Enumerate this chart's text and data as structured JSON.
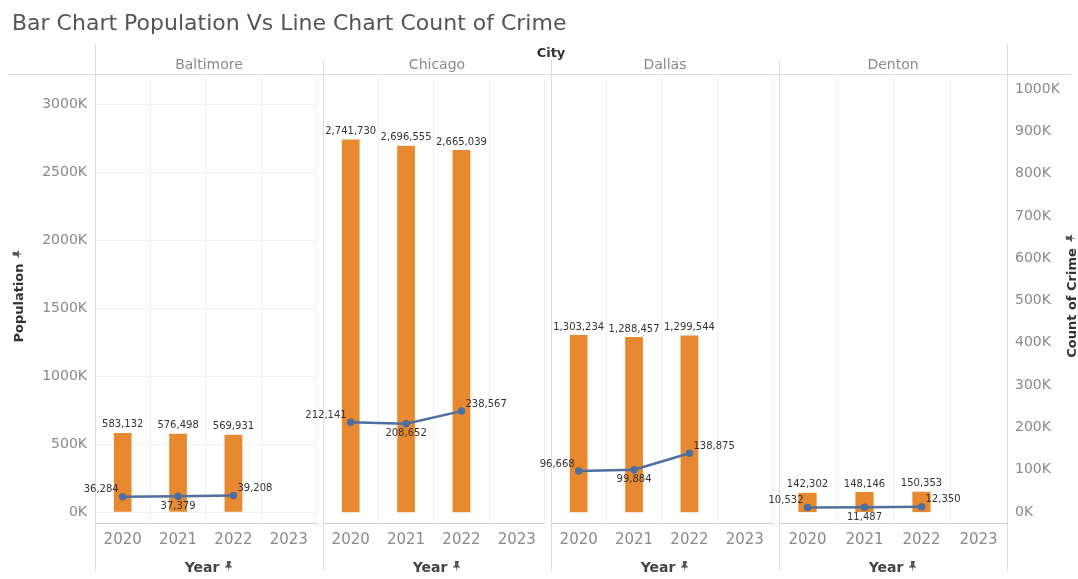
{
  "chart_data": [
    {
      "type": "bar",
      "title": "Baltimore",
      "annotations": [
        "Bar Chart Population Vs  Line Chart Count of Crime",
        "City"
      ],
      "xlabel": "Year",
      "ylabel": "Population",
      "categories": [
        "2020",
        "2021",
        "2022",
        "2023"
      ],
      "series": [
        {
          "color": "#e8892f",
          "values": [
            583132,
            576498,
            569931,
            null
          ],
          "value_labels": [
            "583,132",
            "576,498",
            "569,931",
            null
          ]
        },
        {
          "type": "line",
          "axis": "y2",
          "color": "#4e6fa0",
          "values": [
            36284,
            37379,
            39208,
            null
          ],
          "value_labels": [
            "36,284",
            "37,379",
            "39,208",
            null
          ]
        }
      ],
      "ylim": [
        -80000,
        3210000
      ],
      "yticks": [
        {
          "value": 0,
          "label": "0K"
        },
        {
          "value": 500000,
          "label": "500K"
        },
        {
          "value": 1000000,
          "label": "1000K"
        },
        {
          "value": 1500000,
          "label": "1500K"
        },
        {
          "value": 2000000,
          "label": "2000K"
        },
        {
          "value": 2500000,
          "label": "2500K"
        },
        {
          "value": 3000000,
          "label": "3000K"
        }
      ],
      "y2lim": [
        -26000,
        1031000
      ],
      "marker": "circle",
      "line_style": "solid",
      "grid": true,
      "legend": false,
      "tick_labels": "xy"
    },
    {
      "type": "bar",
      "title": "Chicago",
      "xlabel": "Year",
      "categories": [
        "2020",
        "2021",
        "2022",
        "2023"
      ],
      "series": [
        {
          "color": "#e8892f",
          "values": [
            2741730,
            2696555,
            2665039,
            null
          ],
          "value_labels": [
            "2,741,730",
            "2,696,555",
            "2,665,039",
            null
          ]
        },
        {
          "type": "line",
          "axis": "y2",
          "color": "#4e6fa0",
          "values": [
            212141,
            208652,
            238567,
            null
          ],
          "value_labels": [
            "212,141",
            "208,652",
            "238,567",
            null
          ]
        }
      ],
      "ylim": [
        -80000,
        3210000
      ],
      "y2lim": [
        -26000,
        1031000
      ],
      "marker": "circle",
      "line_style": "solid",
      "grid": true,
      "tick_labels": "x"
    },
    {
      "type": "bar",
      "title": "Dallas",
      "xlabel": "Year",
      "categories": [
        "2020",
        "2021",
        "2022",
        "2023"
      ],
      "series": [
        {
          "color": "#e8892f",
          "values": [
            1303234,
            1288457,
            1299544,
            null
          ],
          "value_labels": [
            "1,303,234",
            "1,288,457",
            "1,299,544",
            null
          ]
        },
        {
          "type": "line",
          "axis": "y2",
          "color": "#4e6fa0",
          "values": [
            96668,
            99884,
            138875,
            null
          ],
          "value_labels": [
            "96,668",
            "99,884",
            "138,875",
            null
          ]
        }
      ],
      "ylim": [
        -80000,
        3210000
      ],
      "y2lim": [
        -26000,
        1031000
      ],
      "marker": "circle",
      "line_style": "solid",
      "grid": true,
      "tick_labels": "x"
    },
    {
      "type": "bar",
      "title": "Denton",
      "xlabel": "Year",
      "y2label": "Count of Crime",
      "categories": [
        "2020",
        "2021",
        "2022",
        "2023"
      ],
      "series": [
        {
          "color": "#e8892f",
          "values": [
            142302,
            148146,
            150353,
            null
          ],
          "value_labels": [
            "142,302",
            "148,146",
            "150,353",
            null
          ]
        },
        {
          "type": "line",
          "axis": "y2",
          "color": "#4e6fa0",
          "values": [
            10532,
            11487,
            12350,
            null
          ],
          "value_labels": [
            "10,532",
            "11,487",
            "12,350",
            null
          ]
        }
      ],
      "ylim": [
        -80000,
        3210000
      ],
      "y2lim": [
        -26000,
        1031000
      ],
      "y2ticks": [
        {
          "value": 0,
          "label": "0K"
        },
        {
          "value": 100000,
          "label": "100K"
        },
        {
          "value": 200000,
          "label": "200K"
        },
        {
          "value": 300000,
          "label": "300K"
        },
        {
          "value": 400000,
          "label": "400K"
        },
        {
          "value": 500000,
          "label": "500K"
        },
        {
          "value": 600000,
          "label": "600K"
        },
        {
          "value": 700000,
          "label": "700K"
        },
        {
          "value": 800000,
          "label": "800K"
        },
        {
          "value": 900000,
          "label": "900K"
        },
        {
          "value": 1000000,
          "label": "1000K"
        }
      ],
      "marker": "circle",
      "line_style": "solid",
      "grid": true,
      "legend": false,
      "tick_labels": "xy2"
    }
  ]
}
